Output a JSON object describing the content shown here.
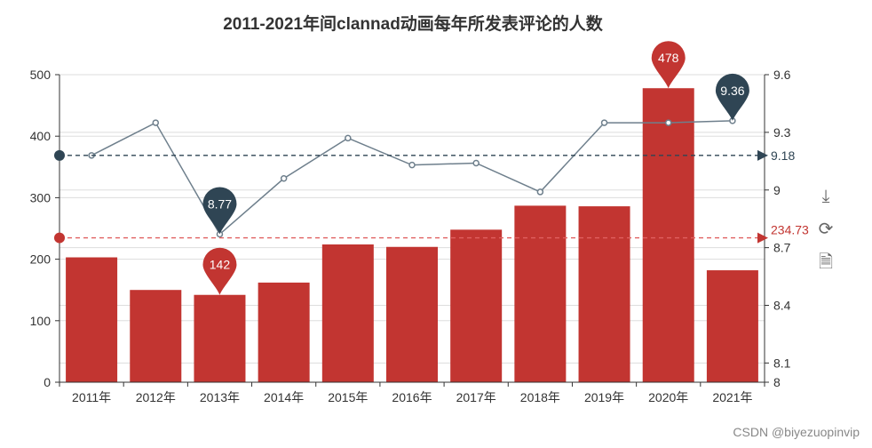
{
  "chart_data": {
    "type": "bar+line",
    "title": "2011-2021年间clannad动画每年所发表评论的人数",
    "categories": [
      "2011年",
      "2012年",
      "2013年",
      "2014年",
      "2015年",
      "2016年",
      "2017年",
      "2018年",
      "2019年",
      "2020年",
      "2021年"
    ],
    "series": [
      {
        "type": "bar",
        "axis": "left",
        "color": "#c23531",
        "values": [
          203,
          150,
          142,
          162,
          224,
          220,
          248,
          287,
          286,
          478,
          182
        ],
        "mark_points": [
          {
            "label": "142",
            "category": "2013年",
            "value": 142
          },
          {
            "label": "478",
            "category": "2020年",
            "value": 478
          }
        ],
        "mark_line": {
          "label": "234.73",
          "value": 234.73
        }
      },
      {
        "type": "line",
        "axis": "right",
        "color": "#2f4554",
        "values": [
          9.18,
          9.35,
          8.77,
          9.06,
          9.27,
          9.13,
          9.14,
          8.99,
          9.35,
          9.35,
          9.36
        ],
        "mark_points": [
          {
            "label": "8.77",
            "category": "2013年",
            "value": 8.77
          },
          {
            "label": "9.36",
            "category": "2021年",
            "value": 9.36
          }
        ],
        "mark_line": {
          "label": "9.18",
          "value": 9.18
        }
      }
    ],
    "y_left": {
      "range": [
        0,
        500
      ],
      "ticks": [
        "0",
        "100",
        "200",
        "300",
        "400",
        "500"
      ]
    },
    "y_right": {
      "range": [
        8,
        9.6
      ],
      "ticks": [
        "8",
        "8.1",
        "8.4",
        "8.7",
        "9",
        "9.3",
        "9.6"
      ]
    },
    "grid": true
  },
  "toolbox": {
    "icons": [
      "download-icon",
      "refresh-icon",
      "data-view-icon"
    ]
  },
  "watermark": "CSDN @biyezuopinvip"
}
